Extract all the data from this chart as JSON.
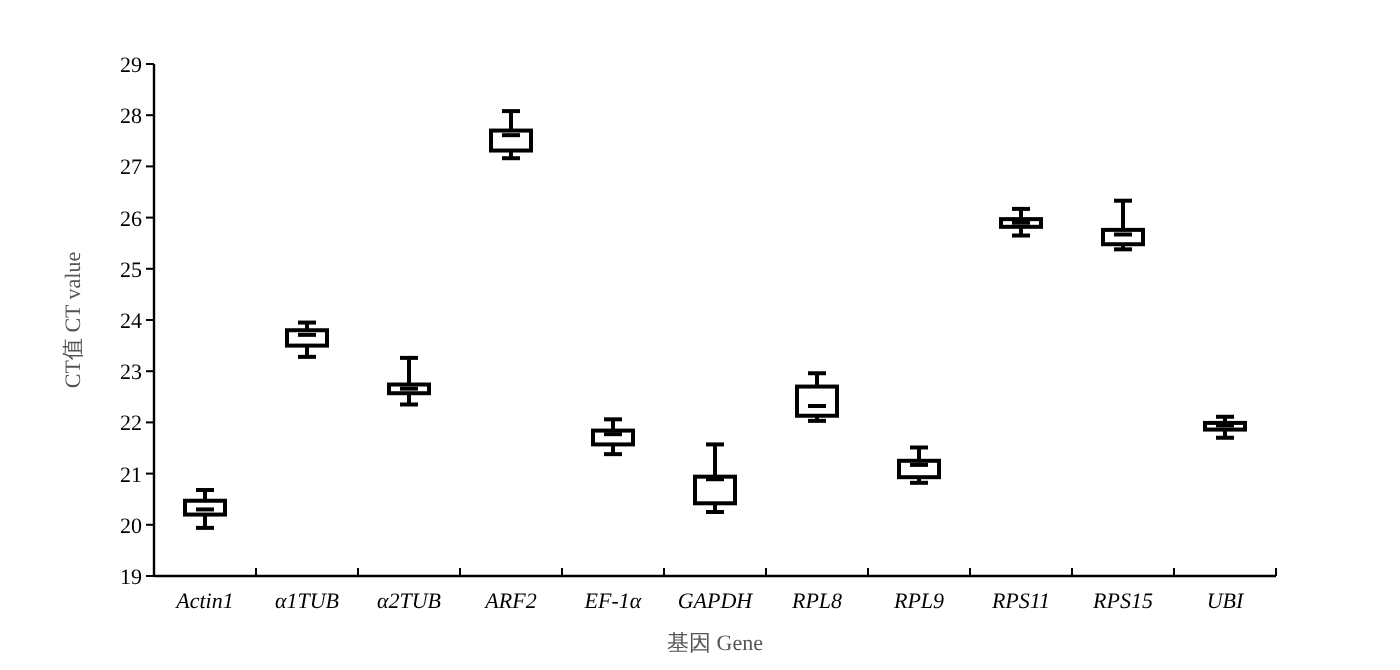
{
  "chart_data": {
    "type": "box",
    "xlabel": "基因 Gene",
    "ylabel": "CT值 CT value",
    "color": "#000000",
    "categories": [
      "*Actin1*",
      "*α1TUB*",
      "*α2TUB*",
      "*ARF2*",
      "*EF-1α*",
      "*GAPDH*",
      "*RPL8*",
      "*RPL9*",
      "*RPS11*",
      "*RPS15*",
      "*UBI*"
    ],
    "boxes": [
      {
        "low": 19.94,
        "q1": 20.2,
        "median": 20.3,
        "q3": 20.47,
        "high": 20.68
      },
      {
        "low": 23.28,
        "q1": 23.5,
        "median": 23.71,
        "q3": 23.8,
        "high": 23.95
      },
      {
        "low": 22.35,
        "q1": 22.57,
        "median": 22.66,
        "q3": 22.74,
        "high": 23.26
      },
      {
        "low": 27.16,
        "q1": 27.31,
        "median": 27.61,
        "q3": 27.7,
        "high": 28.08
      },
      {
        "low": 21.38,
        "q1": 21.57,
        "median": 21.77,
        "q3": 21.84,
        "high": 22.06
      },
      {
        "low": 20.25,
        "q1": 20.42,
        "median": 20.89,
        "q3": 20.94,
        "high": 21.57
      },
      {
        "low": 22.03,
        "q1": 22.13,
        "median": 22.32,
        "q3": 22.7,
        "high": 22.96
      },
      {
        "low": 20.82,
        "q1": 20.93,
        "median": 21.17,
        "q3": 21.25,
        "high": 21.51
      },
      {
        "low": 25.65,
        "q1": 25.82,
        "median": 25.9,
        "q3": 25.97,
        "high": 26.17
      },
      {
        "low": 25.38,
        "q1": 25.48,
        "median": 25.67,
        "q3": 25.76,
        "high": 26.33
      },
      {
        "low": 21.7,
        "q1": 21.86,
        "median": 21.94,
        "q3": 21.99,
        "high": 22.11
      }
    ],
    "ylim": [
      19,
      29
    ],
    "yticks": [
      19,
      20,
      21,
      22,
      23,
      24,
      25,
      26,
      27,
      28,
      29
    ]
  }
}
